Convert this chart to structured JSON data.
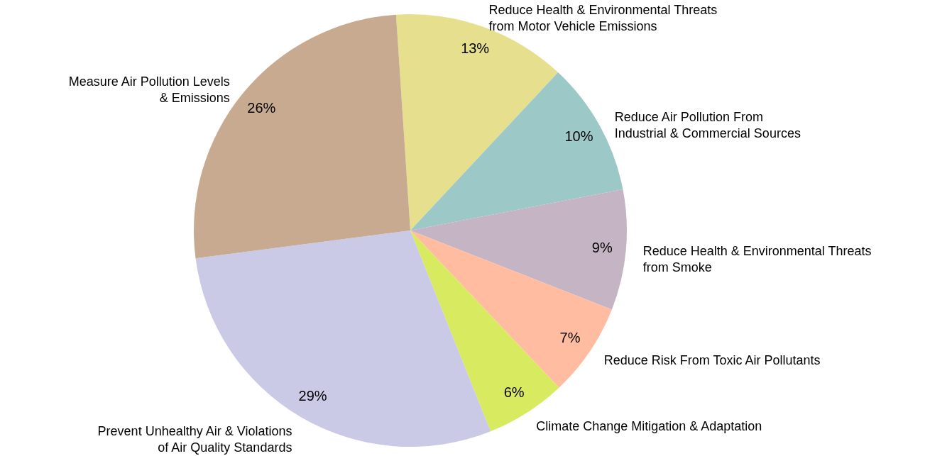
{
  "chart_data": {
    "type": "pie",
    "categories": [
      "Reduce Health & Environmental Threats\nfrom Motor Vehicle Emissions",
      "Reduce Air Pollution From\nIndustrial & Commercial Sources",
      "Reduce Health & Environmental Threats\nfrom Smoke",
      "Reduce Risk From Toxic Air Pollutants",
      "Climate Change Mitigation & Adaptation",
      "Prevent Unhealthy Air & Violations\nof Air Quality Standards",
      "Measure Air Pollution Levels\n& Emissions"
    ],
    "values": [
      13,
      10,
      9,
      7,
      6,
      29,
      26
    ],
    "colors": [
      "#e6e08e",
      "#9cc8c8",
      "#c4b4c4",
      "#ffbca0",
      "#d8ea60",
      "#cacae6",
      "#c8aa90"
    ],
    "value_labels": [
      "13%",
      "10%",
      "9%",
      "7%",
      "6%",
      "29%",
      "26%"
    ]
  }
}
